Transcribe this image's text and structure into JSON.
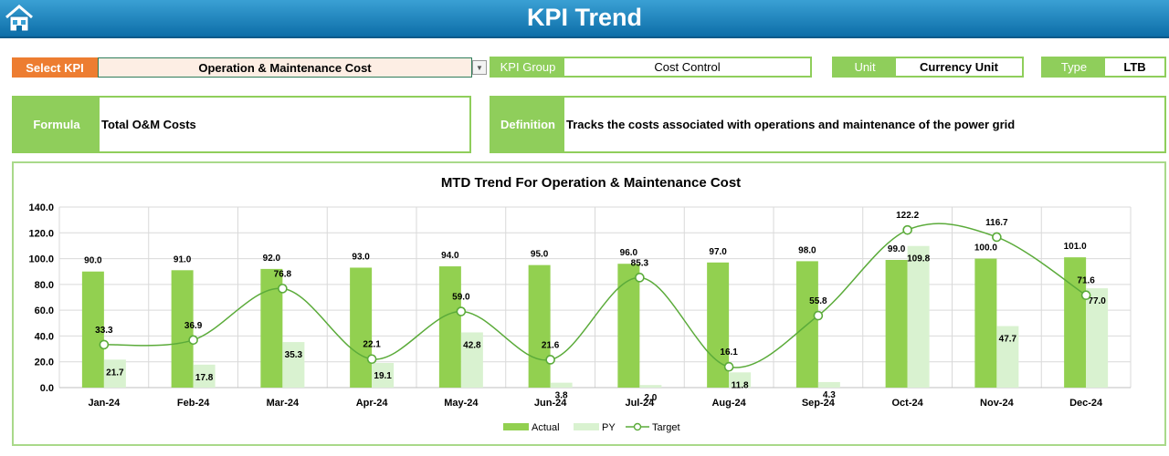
{
  "header": {
    "title": "KPI Trend",
    "home_icon": "home-icon"
  },
  "select_kpi": {
    "label": "Select KPI",
    "value": "Operation & Maintenance Cost"
  },
  "kpi_group": {
    "label": "KPI Group",
    "value": "Cost Control"
  },
  "unit": {
    "label": "Unit",
    "value": "Currency Unit"
  },
  "type": {
    "label": "Type",
    "value": "LTB"
  },
  "formula": {
    "label": "Formula",
    "value": "Total O&M Costs"
  },
  "definition": {
    "label": "Definition",
    "value": "Tracks the costs associated with operations and maintenance of the power grid"
  },
  "colors": {
    "accent_orange": "#ed7d31",
    "accent_green": "#8fce5b",
    "actual": "#92d050",
    "py": "#d9f2d0",
    "target": "#5bab3a",
    "header": "#1a7bb8"
  },
  "chart_data": {
    "type": "bar",
    "title": "MTD Trend For Operation & Maintenance Cost",
    "categories": [
      "Jan-24",
      "Feb-24",
      "Mar-24",
      "Apr-24",
      "May-24",
      "Jun-24",
      "Jul-24",
      "Aug-24",
      "Sep-24",
      "Oct-24",
      "Nov-24",
      "Dec-24"
    ],
    "series": [
      {
        "name": "Actual",
        "type": "bar",
        "values": [
          90.0,
          91.0,
          92.0,
          93.0,
          94.0,
          95.0,
          96.0,
          97.0,
          98.0,
          99.0,
          100.0,
          101.0
        ]
      },
      {
        "name": "PY",
        "type": "bar",
        "values": [
          21.7,
          17.8,
          35.3,
          19.1,
          42.8,
          3.8,
          2.0,
          11.8,
          4.3,
          109.8,
          47.7,
          77.0
        ]
      },
      {
        "name": "Target",
        "type": "line",
        "values": [
          33.3,
          36.9,
          76.8,
          22.1,
          59.0,
          21.6,
          85.3,
          16.1,
          55.8,
          122.2,
          116.7,
          71.6
        ]
      }
    ],
    "yticks": [
      "0.0",
      "20.0",
      "40.0",
      "60.0",
      "80.0",
      "100.0",
      "120.0",
      "140.0"
    ],
    "ylim": [
      0,
      140
    ],
    "grid": true,
    "legend": "bottom"
  }
}
